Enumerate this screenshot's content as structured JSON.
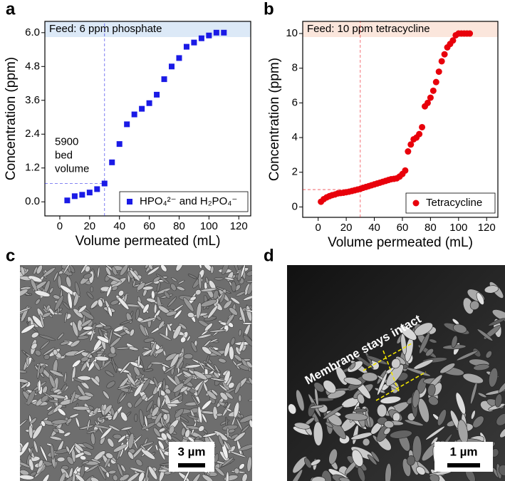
{
  "chart_data": [
    {
      "type": "scatter",
      "label": "a",
      "annotation": "Feed: 6 ppm phosphate",
      "band_color": "#dce9f7",
      "note_lines": [
        "5900",
        "bed",
        "volume"
      ],
      "x_label": "Volume permeated (mL)",
      "y_label": "Concentration (ppm)",
      "xlim": [
        -10,
        128
      ],
      "ylim": [
        -0.5,
        6.4
      ],
      "xticks": [
        0,
        20,
        40,
        60,
        80,
        100,
        120
      ],
      "yticks": [
        {
          "value": 0,
          "label": "0.0"
        },
        1.2,
        2.4,
        3.6,
        4.8,
        {
          "value": 6,
          "label": "6.0"
        }
      ],
      "reference_x": 30,
      "reference_y": 0.65,
      "legend": "lower right",
      "marker": "square",
      "series": [
        {
          "name": "HPO₄²⁻ and H₂PO₄⁻",
          "color": "#1a1ae6",
          "x": [
            5,
            10,
            15,
            20,
            25,
            30,
            35,
            40,
            45,
            50,
            55,
            60,
            65,
            70,
            75,
            80,
            85,
            90,
            95,
            100,
            105,
            110
          ],
          "values": [
            0.05,
            0.2,
            0.25,
            0.33,
            0.45,
            0.65,
            1.4,
            2.05,
            2.75,
            3.1,
            3.3,
            3.5,
            3.8,
            4.35,
            4.8,
            5.1,
            5.5,
            5.65,
            5.8,
            5.9,
            6.0,
            6.0
          ]
        }
      ]
    },
    {
      "type": "scatter",
      "label": "b",
      "annotation": "Feed: 10 ppm tetracycline",
      "band_color": "#fbe6dc",
      "x_label": "Volume permeated (mL)",
      "y_label": "Concentration (ppm)",
      "xlim": [
        -11,
        128
      ],
      "ylim": [
        -0.6,
        10.7
      ],
      "xticks": [
        0,
        20,
        40,
        60,
        80,
        100,
        120
      ],
      "yticks": [
        0,
        2,
        4,
        6,
        8,
        10
      ],
      "reference_x": 30,
      "reference_y": 1,
      "legend": "lower right",
      "marker": "circle",
      "series": [
        {
          "name": "Tetracycline",
          "color": "#e8000b",
          "x": [
            2,
            4,
            6,
            8,
            10,
            12,
            14,
            16,
            18,
            20,
            22,
            24,
            26,
            28,
            30,
            32,
            34,
            36,
            38,
            40,
            42,
            44,
            46,
            48,
            50,
            52,
            54,
            56,
            58,
            60,
            62,
            64,
            66,
            68,
            70,
            72,
            74,
            76,
            78,
            80,
            82,
            84,
            86,
            88,
            90,
            92,
            94,
            96,
            98,
            100,
            102,
            104,
            106,
            108
          ],
          "values": [
            0.3,
            0.45,
            0.55,
            0.62,
            0.68,
            0.72,
            0.78,
            0.8,
            0.82,
            0.85,
            0.88,
            0.92,
            0.96,
            1.0,
            1.04,
            1.1,
            1.15,
            1.2,
            1.25,
            1.3,
            1.35,
            1.4,
            1.45,
            1.5,
            1.55,
            1.6,
            1.62,
            1.65,
            1.75,
            1.9,
            2.1,
            3.2,
            3.6,
            3.9,
            4.0,
            4.2,
            4.6,
            5.8,
            6.0,
            6.3,
            6.7,
            7.2,
            7.8,
            8.4,
            8.8,
            9.2,
            9.4,
            9.6,
            9.9,
            10.0,
            10.0,
            10.0,
            10.0,
            10.0
          ]
        }
      ]
    }
  ],
  "images": [
    {
      "label": "c",
      "scale_bar": "3 µm"
    },
    {
      "label": "d",
      "scale_bar": "1 µm",
      "annotation": "Membrane stays intact"
    }
  ]
}
